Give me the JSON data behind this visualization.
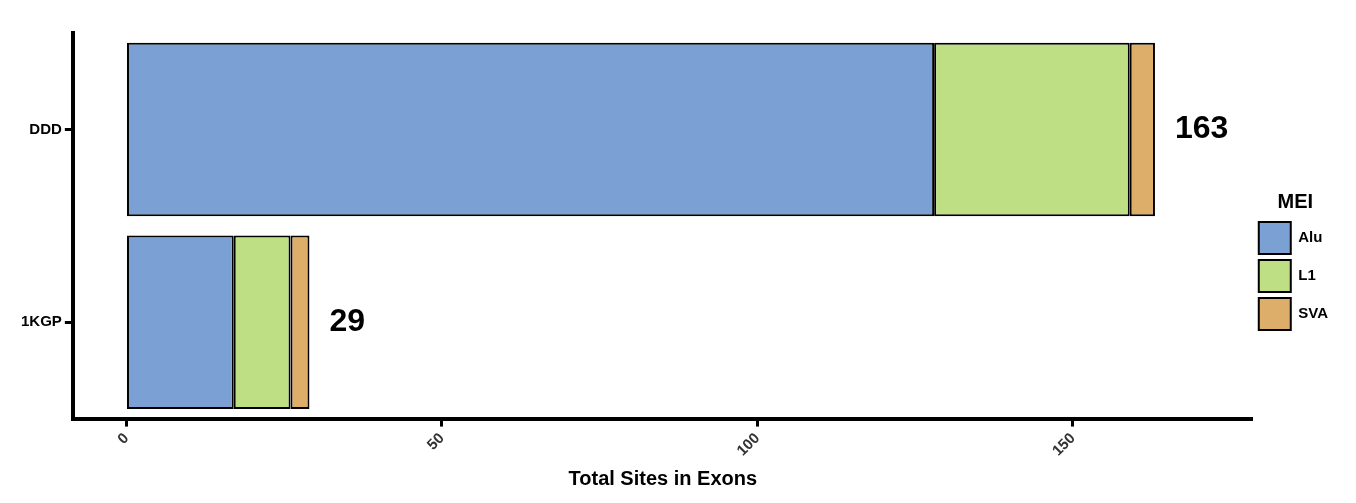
{
  "chart_data": {
    "type": "bar",
    "orientation": "horizontal",
    "stacked": true,
    "xlabel": "Total Sites in Exons",
    "legend_title": "MEI",
    "categories": [
      "DDD",
      "1KGP"
    ],
    "series": [
      {
        "name": "Alu",
        "color": "#7ba0d4",
        "values": [
          128,
          17
        ]
      },
      {
        "name": "L1",
        "color": "#bedf84",
        "values": [
          31,
          9
        ]
      },
      {
        "name": "SVA",
        "color": "#ddad6a",
        "values": [
          4,
          3
        ]
      }
    ],
    "totals": [
      "163",
      "29"
    ],
    "xlim": [
      -8.5,
      178.5
    ],
    "xticks": [
      0,
      50,
      100,
      150
    ],
    "grid": false,
    "legend": "right"
  }
}
